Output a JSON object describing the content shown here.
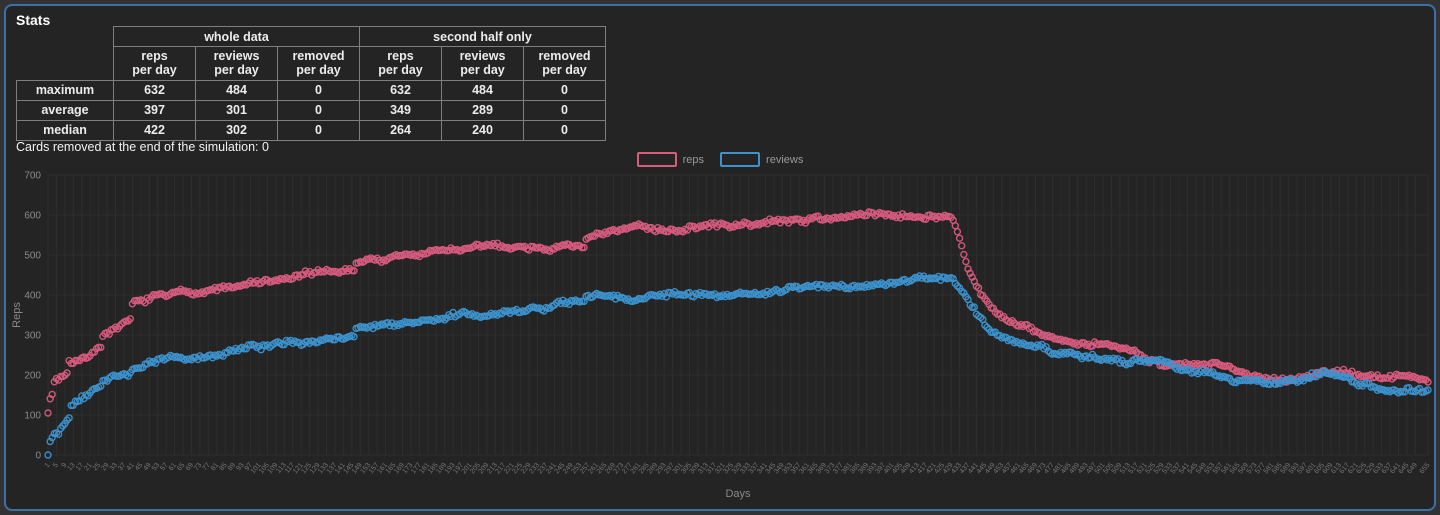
{
  "panel": {
    "title": "Stats",
    "note": "Cards removed at the end of the simulation: 0"
  },
  "stats_table": {
    "col_groups": [
      "whole data",
      "second half only"
    ],
    "col_headers": [
      "reps\nper day",
      "reviews\nper day",
      "removed\nper day",
      "reps\nper day",
      "reviews\nper day",
      "removed\nper day"
    ],
    "rows": [
      {
        "label": "maximum",
        "values": [
          "632",
          "484",
          "0",
          "632",
          "484",
          "0"
        ]
      },
      {
        "label": "average",
        "values": [
          "397",
          "301",
          "0",
          "349",
          "289",
          "0"
        ]
      },
      {
        "label": "median",
        "values": [
          "422",
          "302",
          "0",
          "264",
          "240",
          "0"
        ]
      }
    ]
  },
  "legend": {
    "items": [
      {
        "label": "reps",
        "color": "#d85c7e"
      },
      {
        "label": "reviews",
        "color": "#3d93cf"
      }
    ]
  },
  "chart_data": {
    "type": "scatter",
    "title": "",
    "xlabel": "Days",
    "ylabel": "Reps",
    "x_range": [
      1,
      655
    ],
    "ylim": [
      0,
      700
    ],
    "yticks": [
      0,
      100,
      200,
      300,
      400,
      500,
      600,
      700
    ],
    "xticks": [
      1,
      5,
      9,
      13,
      17,
      21,
      25,
      29,
      33,
      37,
      41,
      45,
      49,
      53,
      57,
      61,
      65,
      69,
      73,
      77,
      81,
      85,
      89,
      93,
      97,
      101,
      105,
      109,
      113,
      117,
      121,
      125,
      129,
      133,
      137,
      141,
      145,
      149,
      153,
      157,
      161,
      165,
      169,
      173,
      177,
      181,
      185,
      189,
      193,
      197,
      201,
      205,
      209,
      213,
      217,
      221,
      225,
      229,
      233,
      237,
      241,
      245,
      249,
      253,
      257,
      261,
      265,
      269,
      273,
      277,
      281,
      285,
      289,
      293,
      297,
      301,
      305,
      309,
      313,
      317,
      321,
      325,
      329,
      333,
      337,
      341,
      345,
      349,
      353,
      357,
      361,
      365,
      369,
      373,
      377,
      381,
      385,
      389,
      393,
      397,
      401,
      405,
      409,
      413,
      417,
      421,
      425,
      429,
      433,
      437,
      441,
      445,
      449,
      453,
      457,
      461,
      465,
      469,
      473,
      477,
      481,
      485,
      489,
      493,
      497,
      501,
      505,
      509,
      513,
      517,
      521,
      525,
      529,
      533,
      537,
      541,
      545,
      549,
      553,
      557,
      561,
      565,
      569,
      573,
      577,
      581,
      585,
      589,
      593,
      597,
      601,
      605,
      609,
      613,
      617,
      621,
      625,
      629,
      633,
      637,
      641,
      645,
      649,
      655
    ],
    "grid": true,
    "legend_position": "top-center",
    "marker": "open-circle",
    "colors": {
      "grid": "#2e2e2e",
      "tick_text": "#8a8a8a",
      "xtick_text": "#757575",
      "axis_title": "#8a8a8a"
    },
    "seed": 7,
    "sampling_note": "trend = [day, value] anchors estimated from the scatter; one point per day reconstructed by linear interpolation with bounded noise",
    "series": [
      {
        "name": "reps",
        "color": "#d85c7e",
        "noise": 16,
        "trend": [
          [
            1,
            105
          ],
          [
            2,
            140
          ],
          [
            3,
            152
          ],
          [
            4,
            185
          ],
          [
            7,
            196
          ],
          [
            10,
            206
          ],
          [
            11,
            240
          ],
          [
            15,
            248
          ],
          [
            20,
            258
          ],
          [
            21,
            266
          ],
          [
            26,
            286
          ],
          [
            27,
            316
          ],
          [
            32,
            326
          ],
          [
            40,
            346
          ],
          [
            41,
            380
          ],
          [
            48,
            390
          ],
          [
            56,
            398
          ],
          [
            65,
            407
          ],
          [
            75,
            414
          ],
          [
            85,
            420
          ],
          [
            95,
            427
          ],
          [
            105,
            433
          ],
          [
            115,
            438
          ],
          [
            125,
            443
          ],
          [
            135,
            448
          ],
          [
            146,
            456
          ],
          [
            147,
            472
          ],
          [
            158,
            480
          ],
          [
            170,
            488
          ],
          [
            182,
            496
          ],
          [
            194,
            503
          ],
          [
            206,
            509
          ],
          [
            218,
            515
          ],
          [
            230,
            520
          ],
          [
            242,
            525
          ],
          [
            255,
            531
          ],
          [
            256,
            552
          ],
          [
            268,
            557
          ],
          [
            280,
            562
          ],
          [
            292,
            566
          ],
          [
            305,
            570
          ],
          [
            318,
            574
          ],
          [
            330,
            577
          ],
          [
            342,
            581
          ],
          [
            355,
            585
          ],
          [
            368,
            591
          ],
          [
            380,
            597
          ],
          [
            392,
            603
          ],
          [
            404,
            608
          ],
          [
            412,
            610
          ],
          [
            420,
            610
          ],
          [
            426,
            606
          ],
          [
            429,
            600
          ],
          [
            431,
            580
          ],
          [
            433,
            548
          ],
          [
            435,
            508
          ],
          [
            437,
            472
          ],
          [
            439,
            444
          ],
          [
            441,
            422
          ],
          [
            443,
            402
          ],
          [
            446,
            380
          ],
          [
            449,
            362
          ],
          [
            452,
            350
          ],
          [
            456,
            338
          ],
          [
            460,
            326
          ],
          [
            465,
            314
          ],
          [
            470,
            301
          ],
          [
            476,
            289
          ],
          [
            482,
            281
          ],
          [
            490,
            273
          ],
          [
            498,
            265
          ],
          [
            506,
            257
          ],
          [
            514,
            249
          ],
          [
            522,
            241
          ],
          [
            530,
            234
          ],
          [
            538,
            228
          ],
          [
            546,
            223
          ],
          [
            554,
            217
          ],
          [
            560,
            211
          ],
          [
            566,
            205
          ],
          [
            572,
            200
          ],
          [
            578,
            197
          ],
          [
            584,
            198
          ],
          [
            590,
            202
          ],
          [
            597,
            208
          ],
          [
            604,
            215
          ],
          [
            611,
            220
          ],
          [
            618,
            219
          ],
          [
            625,
            212
          ],
          [
            632,
            207
          ],
          [
            639,
            204
          ],
          [
            646,
            203
          ],
          [
            655,
            198
          ]
        ]
      },
      {
        "name": "reviews",
        "color": "#3d93cf",
        "noise": 15,
        "trend": [
          [
            1,
            0
          ],
          [
            2,
            34
          ],
          [
            3,
            47
          ],
          [
            4,
            58
          ],
          [
            7,
            74
          ],
          [
            10,
            90
          ],
          [
            11,
            102
          ],
          [
            12,
            128
          ],
          [
            16,
            140
          ],
          [
            20,
            151
          ],
          [
            21,
            157
          ],
          [
            26,
            171
          ],
          [
            27,
            184
          ],
          [
            32,
            194
          ],
          [
            40,
            211
          ],
          [
            41,
            228
          ],
          [
            48,
            237
          ],
          [
            56,
            244
          ],
          [
            65,
            251
          ],
          [
            75,
            258
          ],
          [
            85,
            265
          ],
          [
            95,
            272
          ],
          [
            105,
            280
          ],
          [
            115,
            288
          ],
          [
            125,
            296
          ],
          [
            135,
            304
          ],
          [
            146,
            312
          ],
          [
            147,
            330
          ],
          [
            158,
            337
          ],
          [
            170,
            344
          ],
          [
            182,
            350
          ],
          [
            194,
            357
          ],
          [
            206,
            363
          ],
          [
            218,
            369
          ],
          [
            230,
            374
          ],
          [
            242,
            379
          ],
          [
            255,
            384
          ],
          [
            256,
            396
          ],
          [
            268,
            399
          ],
          [
            280,
            402
          ],
          [
            292,
            405
          ],
          [
            305,
            408
          ],
          [
            318,
            411
          ],
          [
            330,
            414
          ],
          [
            342,
            417
          ],
          [
            355,
            421
          ],
          [
            368,
            426
          ],
          [
            380,
            431
          ],
          [
            392,
            438
          ],
          [
            404,
            445
          ],
          [
            412,
            450
          ],
          [
            420,
            454
          ],
          [
            426,
            456
          ],
          [
            429,
            454
          ],
          [
            431,
            445
          ],
          [
            433,
            430
          ],
          [
            435,
            412
          ],
          [
            437,
            394
          ],
          [
            439,
            377
          ],
          [
            441,
            362
          ],
          [
            443,
            349
          ],
          [
            446,
            334
          ],
          [
            449,
            321
          ],
          [
            452,
            312
          ],
          [
            456,
            304
          ],
          [
            460,
            297
          ],
          [
            465,
            289
          ],
          [
            470,
            280
          ],
          [
            476,
            270
          ],
          [
            482,
            263
          ],
          [
            490,
            256
          ],
          [
            498,
            249
          ],
          [
            506,
            242
          ],
          [
            514,
            234
          ],
          [
            522,
            226
          ],
          [
            530,
            219
          ],
          [
            538,
            212
          ],
          [
            546,
            206
          ],
          [
            554,
            199
          ],
          [
            560,
            193
          ],
          [
            566,
            187
          ],
          [
            572,
            182
          ],
          [
            578,
            178
          ],
          [
            584,
            178
          ],
          [
            590,
            181
          ],
          [
            597,
            185
          ],
          [
            604,
            189
          ],
          [
            611,
            192
          ],
          [
            618,
            190
          ],
          [
            625,
            184
          ],
          [
            632,
            179
          ],
          [
            639,
            175
          ],
          [
            646,
            172
          ],
          [
            655,
            164
          ]
        ]
      }
    ]
  }
}
